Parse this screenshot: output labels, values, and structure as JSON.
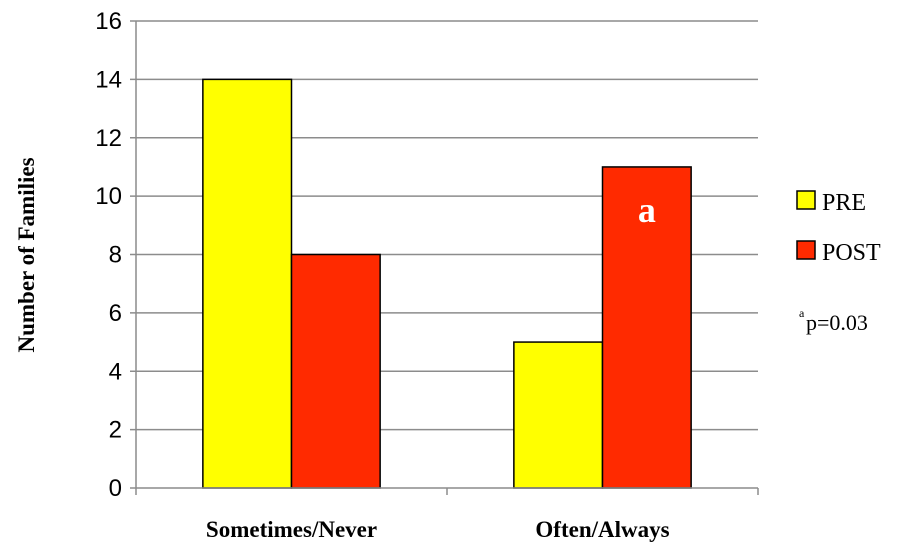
{
  "chart_data": {
    "type": "bar",
    "categories": [
      "Sometimes/Never",
      "Often/Always"
    ],
    "series": [
      {
        "name": "PRE",
        "values": [
          14,
          5
        ],
        "color": "#FFFF00"
      },
      {
        "name": "POST",
        "values": [
          8,
          11
        ],
        "color": "#FF2A00"
      }
    ],
    "ylabel": "Number of Families",
    "xlabel": "",
    "ylim": [
      0,
      16
    ],
    "yticks": [
      0,
      2,
      4,
      6,
      8,
      10,
      12,
      14,
      16
    ],
    "grid": true,
    "legend_position": "right",
    "annotations": [
      {
        "series": "POST",
        "category": "Often/Always",
        "text": "a"
      }
    ],
    "footnote": {
      "superscript": "a",
      "text": "p=0.03"
    }
  }
}
